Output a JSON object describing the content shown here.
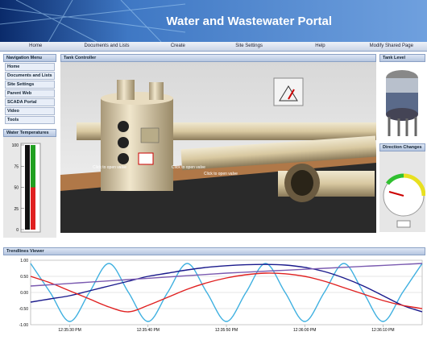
{
  "header": {
    "title": "Water and Wastewater Portal"
  },
  "nav": [
    "Home",
    "Documents and Lists",
    "Create",
    "Site Settings",
    "Help",
    "Modify Shared Page"
  ],
  "menu": {
    "title": "Navigation Menu",
    "items": [
      "Home",
      "Documents and Lists",
      "Site Settings",
      "Parent Web",
      "SCADA Portal",
      "Video",
      "Tools"
    ]
  },
  "temperature": {
    "title": "Water Temperatures",
    "ylim": [
      0,
      100
    ],
    "yticks": [
      0,
      25,
      50,
      75,
      100
    ]
  },
  "tank": {
    "title": "Tank Controller",
    "labels": [
      "Click to open valve",
      "Click to open valve",
      "Click to open valve"
    ]
  },
  "tank_level": {
    "title": "Tank Level"
  },
  "direction": {
    "title": "Direction Changes"
  },
  "chart_data": {
    "type": "line",
    "title": "Trendlines Viewer",
    "x": [
      0,
      1,
      2,
      3,
      4,
      5,
      6,
      7,
      8,
      9,
      10,
      11,
      12,
      13,
      14,
      15,
      16,
      17,
      18,
      19,
      20
    ],
    "xlim": [
      0,
      20
    ],
    "xticks": [
      {
        "value": 2,
        "label": "12:35:30 PM"
      },
      {
        "value": 6,
        "label": "12:35:40 PM"
      },
      {
        "value": 10,
        "label": "12:35:50 PM"
      },
      {
        "value": 14,
        "label": "12:36:00 PM"
      },
      {
        "value": 18,
        "label": "12:36:10 PM"
      }
    ],
    "ylim": [
      -1,
      1
    ],
    "yticks": [
      {
        "value": -1,
        "label": "-1.00"
      },
      {
        "value": -0.5,
        "label": "-0.50"
      },
      {
        "value": 0,
        "label": "0.00"
      },
      {
        "value": 0.5,
        "label": "0.50"
      },
      {
        "value": 1,
        "label": "1.00"
      }
    ],
    "grid": true,
    "series": [
      {
        "color": "#3fb0e0",
        "values": [
          0.9,
          0,
          -0.9,
          0,
          0.9,
          0,
          -0.9,
          0,
          0.9,
          0,
          -0.9,
          0,
          0.9,
          0,
          -0.9,
          0,
          0.9,
          0,
          -0.9,
          0,
          0.9
        ]
      },
      {
        "color": "#1a1a8c",
        "values": [
          -0.3,
          -0.2,
          -0.1,
          0.05,
          0.2,
          0.35,
          0.5,
          0.6,
          0.7,
          0.78,
          0.83,
          0.86,
          0.87,
          0.85,
          0.78,
          0.65,
          0.45,
          0.2,
          -0.1,
          -0.4,
          -0.6
        ]
      },
      {
        "color": "#e02020",
        "values": [
          0.5,
          0.3,
          0.05,
          -0.2,
          -0.45,
          -0.6,
          -0.4,
          -0.15,
          0.1,
          0.3,
          0.45,
          0.55,
          0.6,
          0.58,
          0.5,
          0.35,
          0.15,
          -0.05,
          -0.25,
          -0.4,
          -0.5
        ]
      },
      {
        "color": "#7a5ab0",
        "values": [
          0.2,
          0.24,
          0.28,
          0.32,
          0.36,
          0.4,
          0.44,
          0.48,
          0.52,
          0.56,
          0.6,
          0.63,
          0.66,
          0.69,
          0.72,
          0.75,
          0.78,
          0.81,
          0.84,
          0.87,
          0.9
        ]
      }
    ]
  }
}
